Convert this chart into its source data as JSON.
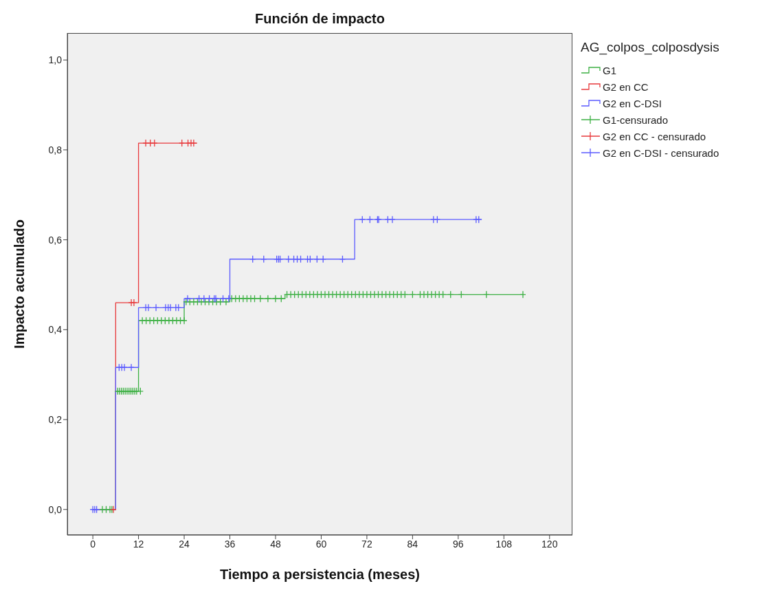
{
  "chart_data": {
    "type": "step",
    "title": "Función de impacto",
    "xlabel": "Tiempo a persistencia  (meses)",
    "ylabel": "Impacto acumulado",
    "legend_title": "AG_colpos_colposdysis",
    "legend": "top right",
    "grid": false,
    "xlim": [
      -6.7,
      126
    ],
    "xticks": [
      0,
      12,
      24,
      36,
      48,
      60,
      72,
      84,
      96,
      108,
      120
    ],
    "ylim": [
      -0.057,
      1.06
    ],
    "yticks": [
      {
        "value": 0,
        "label": "0,0"
      },
      {
        "value": 0.2,
        "label": "0,2"
      },
      {
        "value": 0.4,
        "label": "0,4"
      },
      {
        "value": 0.6,
        "label": "0,6"
      },
      {
        "value": 0.8,
        "label": "0,8"
      },
      {
        "value": 1,
        "label": "1,0"
      }
    ],
    "series": [
      {
        "name": "G1",
        "color": "#3cb043",
        "x": [
          0,
          6,
          12,
          24,
          36,
          50.5,
          113
        ],
        "values": [
          0,
          0.263,
          0.42,
          0.462,
          0.469,
          0.478,
          0.478
        ]
      },
      {
        "name": "G2 en CC",
        "color": "#e8393b",
        "x": [
          0,
          6,
          12,
          27.4
        ],
        "values": [
          0,
          0.46,
          0.815,
          0.815
        ]
      },
      {
        "name": "G2 en C-DSI",
        "color": "#5a5aff",
        "x": [
          0,
          6,
          12,
          24,
          36,
          68.8,
          102.2
        ],
        "values": [
          0,
          0.316,
          0.449,
          0.469,
          0.557,
          0.645,
          0.645
        ]
      },
      {
        "name": "G1-censurado",
        "type": "scatter",
        "marker": "cross",
        "color": "#3cb043",
        "x": [
          2.5,
          3.5,
          4.5,
          5,
          6.5,
          7,
          7.5,
          8,
          8.5,
          9,
          9.5,
          10,
          10.5,
          11,
          11.5,
          12.5,
          13,
          14,
          15,
          16,
          17,
          18,
          19,
          20,
          21,
          22,
          23,
          24,
          24.5,
          25.5,
          26.5,
          27.5,
          28.5,
          29.5,
          30.5,
          31.5,
          32.5,
          33.5,
          35,
          36.5,
          37.5,
          38.5,
          39.5,
          40.5,
          41.5,
          42.5,
          44,
          46,
          48,
          49.5,
          51,
          52,
          53,
          54,
          55,
          56,
          57,
          58,
          59,
          60,
          61,
          62,
          63,
          64,
          65,
          66,
          67,
          68,
          69,
          70,
          71,
          72,
          73,
          74,
          75,
          76,
          77,
          78,
          79,
          80,
          81,
          82,
          84,
          86,
          87,
          88,
          89,
          90,
          91,
          92,
          94,
          96.8,
          103.4,
          113
        ],
        "values": [
          0,
          0,
          0,
          0,
          0.263,
          0.263,
          0.263,
          0.263,
          0.263,
          0.263,
          0.263,
          0.263,
          0.263,
          0.263,
          0.263,
          0.263,
          0.42,
          0.42,
          0.42,
          0.42,
          0.42,
          0.42,
          0.42,
          0.42,
          0.42,
          0.42,
          0.42,
          0.42,
          0.462,
          0.462,
          0.462,
          0.462,
          0.462,
          0.462,
          0.462,
          0.462,
          0.462,
          0.462,
          0.462,
          0.469,
          0.469,
          0.469,
          0.469,
          0.469,
          0.469,
          0.469,
          0.469,
          0.469,
          0.469,
          0.469,
          0.478,
          0.478,
          0.478,
          0.478,
          0.478,
          0.478,
          0.478,
          0.478,
          0.478,
          0.478,
          0.478,
          0.478,
          0.478,
          0.478,
          0.478,
          0.478,
          0.478,
          0.478,
          0.478,
          0.478,
          0.478,
          0.478,
          0.478,
          0.478,
          0.478,
          0.478,
          0.478,
          0.478,
          0.478,
          0.478,
          0.478,
          0.478,
          0.478,
          0.478,
          0.478,
          0.478,
          0.478,
          0.478,
          0.478,
          0.478,
          0.478,
          0.478,
          0.478,
          0.478
        ]
      },
      {
        "name": "G2 en CC - censurado",
        "type": "scatter",
        "marker": "cross",
        "color": "#e8393b",
        "x": [
          5.4,
          10.1,
          10.8,
          13.9,
          15.1,
          16.2,
          23.4,
          25,
          25.8,
          26.5
        ],
        "values": [
          0,
          0.46,
          0.46,
          0.815,
          0.815,
          0.815,
          0.815,
          0.815,
          0.815,
          0.815
        ]
      },
      {
        "name": "G2 en C-DSI - censurado",
        "type": "scatter",
        "marker": "cross",
        "color": "#5a5aff",
        "x": [
          0,
          0.5,
          1,
          6.9,
          7.6,
          8.3,
          10.1,
          13.9,
          14.6,
          16.6,
          19.1,
          19.8,
          20.4,
          21.8,
          22.5,
          24.9,
          27.9,
          29.2,
          30.6,
          31.9,
          32.3,
          34.2,
          35.7,
          42,
          44.9,
          48.3,
          48.8,
          49.2,
          51.4,
          52.8,
          53.7,
          54.6,
          56.4,
          57.1,
          58.9,
          60.5,
          65.6,
          70.8,
          72.8,
          74.8,
          75.1,
          77.5,
          78.7,
          89.5,
          90.5,
          100.7,
          101.4
        ],
        "values": [
          0,
          0,
          0,
          0.316,
          0.316,
          0.316,
          0.316,
          0.449,
          0.449,
          0.449,
          0.449,
          0.449,
          0.449,
          0.449,
          0.449,
          0.469,
          0.469,
          0.469,
          0.469,
          0.469,
          0.469,
          0.469,
          0.469,
          0.557,
          0.557,
          0.557,
          0.557,
          0.557,
          0.557,
          0.557,
          0.557,
          0.557,
          0.557,
          0.557,
          0.557,
          0.557,
          0.557,
          0.645,
          0.645,
          0.645,
          0.645,
          0.645,
          0.645,
          0.645,
          0.645,
          0.645,
          0.645
        ]
      }
    ]
  }
}
